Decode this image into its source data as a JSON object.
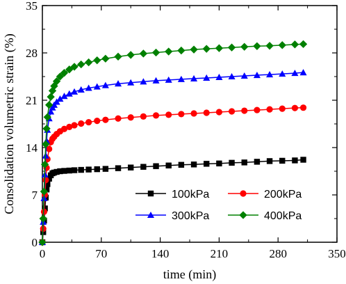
{
  "chart_data": {
    "type": "line",
    "xlabel": "time (min)",
    "ylabel": "Consolidation volumetric strain (%)",
    "xlim": [
      0,
      350
    ],
    "ylim": [
      0,
      35
    ],
    "xticks": [
      0,
      70,
      140,
      210,
      280,
      350
    ],
    "yticks": [
      0,
      7,
      14,
      21,
      28,
      35
    ],
    "grid": false,
    "legend_position": "bottom-right",
    "series": [
      {
        "name": "100kPa",
        "color": "#000000",
        "marker": "square",
        "x": [
          0,
          1,
          2,
          3,
          4,
          5,
          6,
          8,
          10,
          12,
          14,
          17,
          21,
          26,
          32,
          38,
          46,
          55,
          65,
          75,
          90,
          105,
          120,
          135,
          150,
          165,
          180,
          195,
          210,
          225,
          240,
          255,
          270,
          285,
          300,
          310
        ],
        "y": [
          0,
          1.5,
          3.2,
          5.0,
          6.6,
          7.8,
          8.6,
          9.4,
          9.9,
          10.2,
          10.3,
          10.4,
          10.5,
          10.55,
          10.6,
          10.65,
          10.7,
          10.75,
          10.8,
          10.85,
          10.95,
          11.05,
          11.15,
          11.25,
          11.35,
          11.45,
          11.5,
          11.6,
          11.65,
          11.75,
          11.8,
          11.9,
          12.0,
          12.05,
          12.1,
          12.2
        ]
      },
      {
        "name": "200kPa",
        "color": "#ff0000",
        "marker": "circle",
        "x": [
          0,
          1,
          2,
          3,
          4,
          5,
          6,
          8,
          10,
          12,
          14,
          17,
          21,
          26,
          32,
          38,
          46,
          55,
          65,
          75,
          90,
          105,
          120,
          135,
          150,
          165,
          180,
          195,
          210,
          225,
          240,
          255,
          270,
          285,
          300,
          310
        ],
        "y": [
          0,
          2.0,
          4.5,
          7.0,
          9.2,
          11.0,
          12.3,
          13.8,
          14.8,
          15.3,
          15.6,
          16.0,
          16.4,
          16.75,
          17.05,
          17.3,
          17.55,
          17.75,
          17.95,
          18.1,
          18.3,
          18.45,
          18.6,
          18.75,
          18.85,
          18.95,
          19.05,
          19.15,
          19.25,
          19.35,
          19.45,
          19.55,
          19.65,
          19.75,
          19.85,
          19.9
        ]
      },
      {
        "name": "300kPa",
        "color": "#0000ff",
        "marker": "triangle",
        "x": [
          0,
          1,
          2,
          3,
          4,
          5,
          6,
          8,
          10,
          12,
          14,
          17,
          21,
          26,
          32,
          38,
          46,
          55,
          65,
          75,
          90,
          105,
          120,
          135,
          150,
          165,
          180,
          195,
          210,
          225,
          240,
          255,
          270,
          285,
          300,
          310
        ],
        "y": [
          0,
          3.0,
          6.5,
          10.0,
          12.8,
          15.0,
          16.6,
          18.3,
          19.3,
          19.9,
          20.3,
          20.75,
          21.2,
          21.6,
          21.95,
          22.25,
          22.55,
          22.8,
          23.0,
          23.2,
          23.45,
          23.6,
          23.75,
          23.9,
          24.0,
          24.1,
          24.2,
          24.3,
          24.4,
          24.5,
          24.6,
          24.7,
          24.8,
          24.9,
          25.0,
          25.1
        ]
      },
      {
        "name": "400kPa",
        "color": "#008000",
        "marker": "diamond",
        "x": [
          0,
          1,
          2,
          3,
          4,
          5,
          6,
          8,
          10,
          12,
          14,
          17,
          21,
          26,
          32,
          38,
          46,
          55,
          65,
          75,
          90,
          105,
          120,
          135,
          150,
          165,
          180,
          195,
          210,
          225,
          240,
          255,
          270,
          285,
          300,
          310
        ],
        "y": [
          0,
          3.5,
          7.5,
          11.5,
          14.5,
          16.8,
          18.5,
          20.3,
          21.5,
          22.4,
          23.1,
          23.8,
          24.5,
          25.05,
          25.55,
          25.95,
          26.3,
          26.6,
          26.9,
          27.15,
          27.45,
          27.7,
          27.9,
          28.05,
          28.2,
          28.35,
          28.5,
          28.6,
          28.7,
          28.8,
          28.9,
          29.0,
          29.05,
          29.15,
          29.25,
          29.3
        ]
      }
    ]
  }
}
